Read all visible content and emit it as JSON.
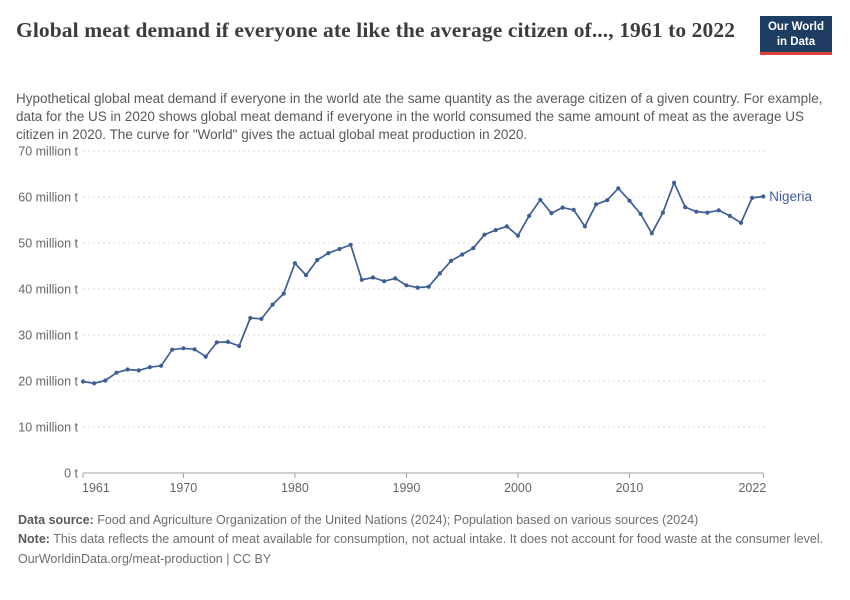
{
  "header": {
    "title": "Global meat demand if everyone ate like the average citizen of..., 1961 to 2022",
    "subtitle": "Hypothetical global meat demand if everyone in the world ate the same quantity as the average citizen of a given country. For example, data for the US in 2020 shows global meat demand if everyone in the world consumed the same amount of meat as the average US citizen in 2020. The curve for \"World\" gives the actual global meat production in 2020.",
    "logo": {
      "line1": "Our World",
      "line2": "in Data",
      "bg_color": "#1d3d63",
      "accent_color": "#e0403a"
    }
  },
  "chart_data": {
    "type": "line",
    "title": "Global meat demand if everyone ate like the average citizen of..., 1961 to 2022",
    "entity_label": "Nigeria",
    "line_color": "#3f5e95",
    "grid": "horizontal-dashed",
    "xlim": [
      1961,
      2022
    ],
    "ylim": [
      0,
      70
    ],
    "x_ticks": [
      {
        "v": 1961,
        "label": "1961"
      },
      {
        "v": 1970,
        "label": "1970"
      },
      {
        "v": 1980,
        "label": "1980"
      },
      {
        "v": 1990,
        "label": "1990"
      },
      {
        "v": 2000,
        "label": "2000"
      },
      {
        "v": 2010,
        "label": "2010"
      },
      {
        "v": 2022,
        "label": "2022"
      }
    ],
    "y_ticks": [
      {
        "v": 0,
        "label": "0 t"
      },
      {
        "v": 10,
        "label": "10 million t"
      },
      {
        "v": 20,
        "label": "20 million t"
      },
      {
        "v": 30,
        "label": "30 million t"
      },
      {
        "v": 40,
        "label": "40 million t"
      },
      {
        "v": 50,
        "label": "50 million t"
      },
      {
        "v": 60,
        "label": "60 million t"
      },
      {
        "v": 70,
        "label": "70 million t"
      }
    ],
    "x": [
      1961,
      1962,
      1963,
      1964,
      1965,
      1966,
      1967,
      1968,
      1969,
      1970,
      1971,
      1972,
      1973,
      1974,
      1975,
      1976,
      1977,
      1978,
      1979,
      1980,
      1981,
      1982,
      1983,
      1984,
      1985,
      1986,
      1987,
      1988,
      1989,
      1990,
      1991,
      1992,
      1993,
      1994,
      1995,
      1996,
      1997,
      1998,
      1999,
      2000,
      2001,
      2002,
      2003,
      2004,
      2005,
      2006,
      2007,
      2008,
      2009,
      2010,
      2011,
      2012,
      2013,
      2014,
      2015,
      2016,
      2017,
      2018,
      2019,
      2020,
      2021,
      2022
    ],
    "series": [
      {
        "name": "Nigeria",
        "unit": "million t",
        "values": [
          19.9,
          19.5,
          20.1,
          21.8,
          22.5,
          22.3,
          23.0,
          23.3,
          26.8,
          27.1,
          26.9,
          25.3,
          28.4,
          28.5,
          27.6,
          33.7,
          33.5,
          36.6,
          39.0,
          45.6,
          43.0,
          46.3,
          47.8,
          48.7,
          49.6,
          42.0,
          42.5,
          41.7,
          42.3,
          40.8,
          40.3,
          40.5,
          43.4,
          46.1,
          47.5,
          48.9,
          51.8,
          52.8,
          53.6,
          51.6,
          55.9,
          59.4,
          56.5,
          57.7,
          57.2,
          53.6,
          58.4,
          59.3,
          61.9,
          59.2,
          56.3,
          52.1,
          56.6,
          63.1,
          57.8,
          56.8,
          56.6,
          57.1,
          55.9,
          54.4,
          59.8,
          60.1
        ]
      }
    ]
  },
  "footer": {
    "data_source_label": "Data source:",
    "data_source_text": "Food and Agriculture Organization of the United Nations (2024); Population based on various sources (2024)",
    "note_label": "Note:",
    "note_text": "This data reflects the amount of meat available for consumption, not actual intake. It does not account for food waste at the consumer level.",
    "url_text": "OurWorldinData.org/meat-production | CC BY"
  }
}
